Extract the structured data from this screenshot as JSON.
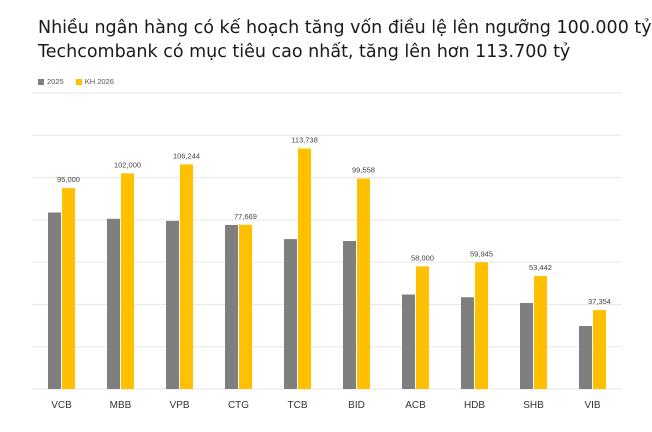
{
  "title_line1": "Nhiều ngân hàng có kế hoạch tăng vốn điều lệ lên ngưỡng 100.000 tỷ",
  "title_line2": "Techcombank có mục tiêu cao nhất, tăng lên hơn 113.700 tỷ",
  "colors": {
    "s2025": "#7f7f7f",
    "kh2026": "#ffc000",
    "grid": "#e6e6e6"
  },
  "chart_data": {
    "type": "bar",
    "title": "Nhiều ngân hàng có kế hoạch tăng vốn điều lệ lên ngưỡng 100.000 tỷ",
    "subtitle": "Techcombank có mục tiêu cao nhất, tăng lên hơn 113.700 tỷ",
    "xlabel": "",
    "ylabel": "",
    "ylim": [
      0,
      140000
    ],
    "grid": true,
    "legend_position": "top-left",
    "categories": [
      "VCB",
      "MBB",
      "VPB",
      "CTG",
      "TCB",
      "BID",
      "ACB",
      "HDB",
      "SHB",
      "VIB"
    ],
    "series": [
      {
        "name": "2025",
        "values": [
          83500,
          80500,
          79500,
          77600,
          70900,
          70000,
          44700,
          43400,
          40700,
          29800
        ]
      },
      {
        "name": "KH 2026",
        "values": [
          95000,
          102000,
          106244,
          77669,
          113738,
          99558,
          58000,
          59945,
          53442,
          37354
        ],
        "value_labels": [
          "95,000",
          "102,000",
          "106,244",
          "77,669",
          "113,738",
          "99,558",
          "58,000",
          "59,945",
          "53,442",
          "37,354"
        ]
      }
    ]
  }
}
